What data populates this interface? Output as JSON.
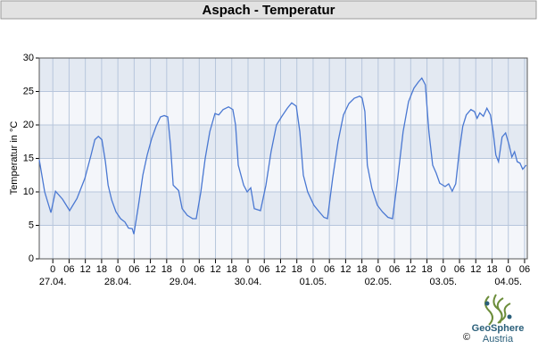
{
  "chart_data": {
    "type": "line",
    "title": "Aspach - Temperatur",
    "ylabel": "Temperatur in °C",
    "x": [
      -5,
      -3,
      -0.7,
      1,
      3.6,
      6.2,
      8.9,
      11.8,
      14.1,
      15.5,
      16.8,
      18.1,
      19.4,
      20.4,
      21.7,
      23.3,
      25,
      26.6,
      27.9,
      29.3,
      29.9,
      31.6,
      33.2,
      34.8,
      36.5,
      38.1,
      39.7,
      41.1,
      42.4,
      43.4,
      44.4,
      46.4,
      47.7,
      49.6,
      51.6,
      52.9,
      54.6,
      56.2,
      57.9,
      59.8,
      61.2,
      62.8,
      64.8,
      66.4,
      67.4,
      68.4,
      70.4,
      71.7,
      73,
      74.3,
      76.6,
      78.6,
      80.5,
      82.5,
      84.5,
      86.5,
      88.1,
      89.8,
      91.1,
      92.4,
      94,
      96.3,
      98.3,
      100,
      101.3,
      103.2,
      105.2,
      107.2,
      109.2,
      111.2,
      113.2,
      114.1,
      115.1,
      116,
      117.7,
      119.7,
      121.6,
      123.6,
      125.3,
      127.2,
      129.2,
      131.2,
      133.2,
      134.8,
      136.1,
      137.4,
      138.7,
      140.1,
      141.4,
      142.7,
      144.7,
      146,
      147.3,
      148.6,
      149.9,
      151.2,
      152.5,
      154.2,
      155.5,
      156.5,
      157.5,
      158.8,
      160.1,
      161.4,
      162.4,
      163.4,
      164.4,
      165.7,
      167,
      168.3,
      169.3,
      170.3,
      171.3,
      172.3,
      173.3,
      174.6
    ],
    "series": [
      {
        "name": "Temperatur",
        "color": "#4a78d2",
        "values": [
          14.8,
          10,
          6.9,
          10.1,
          8.9,
          7.2,
          9,
          12,
          15.5,
          17.8,
          18.3,
          17.8,
          14.5,
          11,
          8.8,
          7,
          6,
          5.5,
          4.6,
          4.5,
          3.7,
          8,
          12.5,
          15.5,
          18,
          19.8,
          21.2,
          21.4,
          21.2,
          17,
          11,
          10.2,
          7.5,
          6.5,
          6,
          6,
          10,
          15,
          19,
          21.7,
          21.5,
          22.3,
          22.7,
          22.3,
          20,
          14,
          11,
          10,
          10.6,
          7.5,
          7.2,
          11,
          16,
          20,
          21.3,
          22.5,
          23.3,
          22.8,
          19,
          12.5,
          10,
          8,
          7,
          6.2,
          6,
          12,
          17.5,
          21.5,
          23.2,
          24,
          24.3,
          24,
          22,
          14,
          10.5,
          8,
          7,
          6.2,
          6,
          12,
          19,
          23.5,
          25.5,
          26.4,
          27,
          26,
          19,
          14,
          12.8,
          11.3,
          10.8,
          11.2,
          10.1,
          11.2,
          16,
          19.8,
          21.5,
          22.3,
          22,
          21,
          21.8,
          21.3,
          22.5,
          21.5,
          19,
          15.5,
          14.5,
          18.2,
          18.8,
          17,
          15.2,
          16,
          14.5,
          14.3,
          13.4,
          14
        ]
      }
    ],
    "xlim": [
      -5,
      175
    ],
    "ylim": [
      0,
      30
    ],
    "yticks": [
      0,
      5,
      10,
      15,
      20,
      25,
      30
    ],
    "xticks": [
      0,
      {
        "value": 6,
        "label": "06"
      },
      12,
      18,
      {
        "value": 24,
        "label": "0"
      },
      {
        "value": 30,
        "label": "06"
      },
      {
        "value": 36,
        "label": "12"
      },
      {
        "value": 42,
        "label": "18"
      },
      {
        "value": 48,
        "label": "0"
      },
      {
        "value": 54,
        "label": "06"
      },
      {
        "value": 60,
        "label": "12"
      },
      {
        "value": 66,
        "label": "18"
      },
      {
        "value": 72,
        "label": "0"
      },
      {
        "value": 78,
        "label": "06"
      },
      {
        "value": 84,
        "label": "12"
      },
      {
        "value": 90,
        "label": "18"
      },
      {
        "value": 96,
        "label": "0"
      },
      {
        "value": 102,
        "label": "06"
      },
      {
        "value": 108,
        "label": "12"
      },
      {
        "value": 114,
        "label": "18"
      },
      {
        "value": 120,
        "label": "0"
      },
      {
        "value": 126,
        "label": "06"
      },
      {
        "value": 132,
        "label": "12"
      },
      {
        "value": 138,
        "label": "18"
      },
      {
        "value": 144,
        "label": "0"
      },
      {
        "value": 150,
        "label": "06"
      },
      {
        "value": 156,
        "label": "12"
      },
      {
        "value": 162,
        "label": "18"
      },
      {
        "value": 168,
        "label": "0"
      },
      {
        "value": 174,
        "label": "06"
      }
    ],
    "date_labels": [
      {
        "value": 0,
        "label": "27.04."
      },
      {
        "value": 24,
        "label": "28.04."
      },
      {
        "value": 48,
        "label": "29.04."
      },
      {
        "value": 72,
        "label": "30.04."
      },
      {
        "value": 96,
        "label": "01.05."
      },
      {
        "value": 120,
        "label": "02.05."
      },
      {
        "value": 144,
        "label": "03.05."
      },
      {
        "value": 168,
        "label": "04.05."
      }
    ],
    "grid": true
  },
  "logo": {
    "name": "GeoSphere",
    "country": "Austria",
    "copyright": "©"
  }
}
